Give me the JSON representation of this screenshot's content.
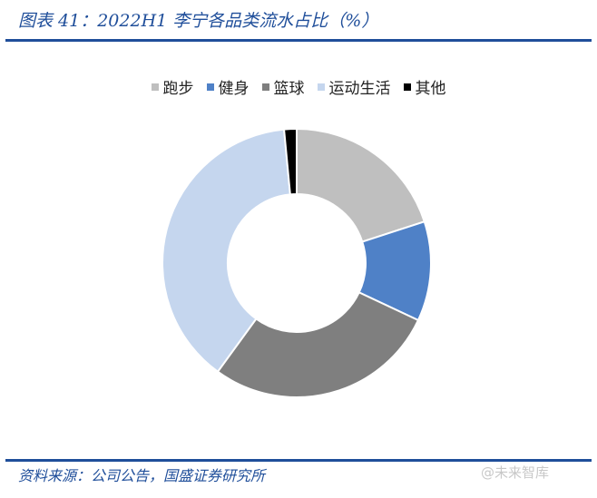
{
  "title": "图表 41：2022H1 李宁各品类流水占比（%）",
  "source": "资料来源：公司公告，国盛证券研究所",
  "watermark": "@未来智库",
  "chart_data": {
    "type": "pie",
    "donut": true,
    "legend_position": "top",
    "categories": [
      "跑步",
      "健身",
      "篮球",
      "运动生活",
      "其他"
    ],
    "values": [
      20,
      12,
      28,
      38.5,
      1.5
    ],
    "colors": [
      "#bfbfbf",
      "#4f81c7",
      "#7f7f7f",
      "#c5d6ee",
      "#000000"
    ]
  }
}
